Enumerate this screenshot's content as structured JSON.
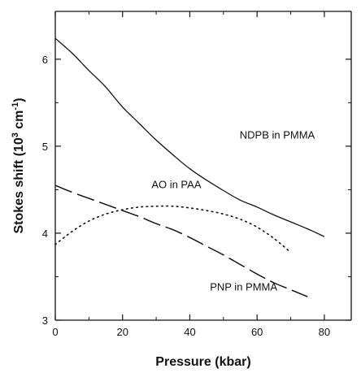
{
  "chart_data": {
    "type": "line",
    "title": "",
    "xlabel": "Pressure (kbar)",
    "ylabel_main": "Stokes shift (10",
    "ylabel_sup1": "3",
    "ylabel_mid": " cm",
    "ylabel_sup2": "-1",
    "ylabel_end": ")",
    "xlim": [
      0,
      88
    ],
    "ylim": [
      3,
      6.55
    ],
    "xticks": [
      0,
      20,
      40,
      60,
      80
    ],
    "yticks": [
      3,
      4,
      5,
      6
    ],
    "x_minor_ticks": [
      10,
      30,
      50,
      70
    ],
    "y_minor_ticks": [
      3.5,
      4.5,
      5.5
    ],
    "grid": false,
    "legend": "none",
    "series": [
      {
        "name": "NDPB in PMMA",
        "style": "solid",
        "x": [
          0,
          5,
          10,
          15,
          20,
          25,
          30,
          35,
          40,
          45,
          50,
          55,
          60,
          65,
          70,
          75,
          80
        ],
        "y": [
          6.24,
          6.07,
          5.87,
          5.68,
          5.45,
          5.26,
          5.07,
          4.9,
          4.74,
          4.61,
          4.49,
          4.38,
          4.3,
          4.21,
          4.13,
          4.05,
          3.96
        ]
      },
      {
        "name": "AO in PAA",
        "style": "dotted",
        "x": [
          0,
          5,
          10,
          15,
          20,
          25,
          30,
          35,
          40,
          45,
          50,
          55,
          60,
          65,
          70
        ],
        "y": [
          3.87,
          4.02,
          4.14,
          4.22,
          4.27,
          4.3,
          4.31,
          4.31,
          4.29,
          4.26,
          4.22,
          4.16,
          4.07,
          3.94,
          3.78
        ]
      },
      {
        "name": "PNP in PMMA",
        "style": "dashed",
        "x": [
          0,
          5,
          10,
          15,
          20,
          25,
          30,
          35,
          40,
          45,
          50,
          55,
          60,
          65,
          70,
          75
        ],
        "y": [
          4.55,
          4.47,
          4.4,
          4.33,
          4.26,
          4.19,
          4.11,
          4.04,
          3.95,
          3.85,
          3.75,
          3.64,
          3.53,
          3.43,
          3.35,
          3.27
        ]
      }
    ],
    "annotations": [
      {
        "text": "NDPB in PMMA",
        "x": 66,
        "y": 5.09
      },
      {
        "text": "AO in PAA",
        "x": 36,
        "y": 4.52
      },
      {
        "text": "PNP in PMMA",
        "x": 56,
        "y": 3.34
      }
    ]
  }
}
